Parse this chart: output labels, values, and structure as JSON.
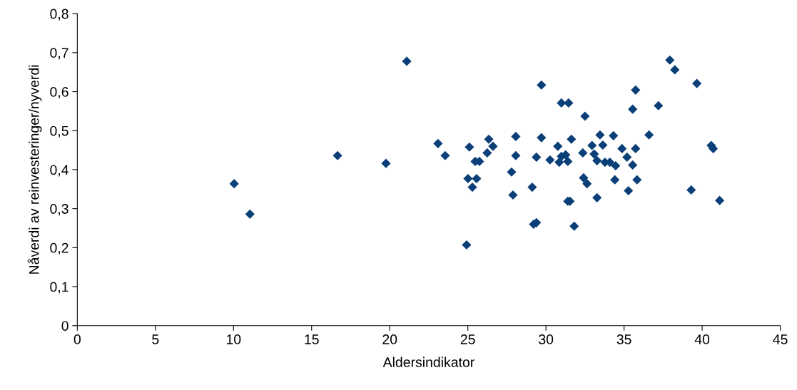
{
  "chart_data": {
    "type": "scatter",
    "xlabel": "Aldersindikator",
    "ylabel": "Nåverdi av reinvesteringer/nyverdi",
    "x": [
      10.04,
      11.05,
      16.66,
      19.76,
      21.09,
      23.09,
      23.55,
      25.1,
      25.47,
      25.74,
      26.34,
      26.61,
      26.24,
      25.01,
      25.56,
      25.29,
      24.92,
      28.07,
      28.07,
      27.8,
      27.89,
      29.12,
      29.21,
      29.39,
      29.71,
      29.71,
      29.39,
      30.26,
      30.76,
      30.99,
      31.45,
      30.99,
      31.26,
      30.85,
      31.4,
      31.63,
      32.5,
      32.36,
      32.95,
      33.09,
      33.27,
      33.64,
      33.46,
      33.78,
      34.09,
      34.46,
      32.41,
      32.63,
      33.27,
      31.81,
      31.4,
      31.54,
      34.32,
      34.87,
      35.19,
      35.55,
      35.74,
      34.41,
      35.83,
      35.28,
      35.74,
      35.55,
      36.6,
      37.2,
      37.93,
      38.25,
      39.66,
      40.58,
      40.71,
      39.3,
      41.12
    ],
    "series": [
      {
        "color": "#0b3f78",
        "values": [
          0.364,
          0.286,
          0.436,
          0.416,
          0.678,
          0.467,
          0.436,
          0.458,
          0.421,
          0.421,
          0.478,
          0.46,
          0.443,
          0.377,
          0.377,
          0.355,
          0.207,
          0.485,
          0.436,
          0.394,
          0.335,
          0.355,
          0.26,
          0.264,
          0.617,
          0.482,
          0.432,
          0.425,
          0.46,
          0.571,
          0.571,
          0.434,
          0.438,
          0.419,
          0.421,
          0.478,
          0.537,
          0.443,
          0.462,
          0.44,
          0.423,
          0.463,
          0.489,
          0.419,
          0.419,
          0.41,
          0.379,
          0.364,
          0.328,
          0.255,
          0.319,
          0.319,
          0.487,
          0.454,
          0.432,
          0.412,
          0.454,
          0.374,
          0.374,
          0.346,
          0.604,
          0.555,
          0.489,
          0.564,
          0.681,
          0.656,
          0.621,
          0.462,
          0.454,
          0.348,
          0.321
        ]
      }
    ],
    "xlim": [
      0,
      45
    ],
    "xticks": [
      0,
      5,
      10,
      15,
      20,
      25,
      30,
      35,
      40,
      45
    ],
    "ylim": [
      0,
      0.8
    ],
    "yticks": [
      0,
      {
        "value": 0.1,
        "label": "0,1"
      },
      {
        "value": 0.2,
        "label": "0,2"
      },
      {
        "value": 0.3,
        "label": "0,3"
      },
      {
        "value": 0.4,
        "label": "0,4"
      },
      {
        "value": 0.5,
        "label": "0,5"
      },
      {
        "value": 0.6,
        "label": "0,6"
      },
      {
        "value": 0.7,
        "label": "0,7"
      },
      {
        "value": 0.8,
        "label": "0,8"
      }
    ],
    "grid": false,
    "legend": false,
    "marker": "diamond"
  }
}
